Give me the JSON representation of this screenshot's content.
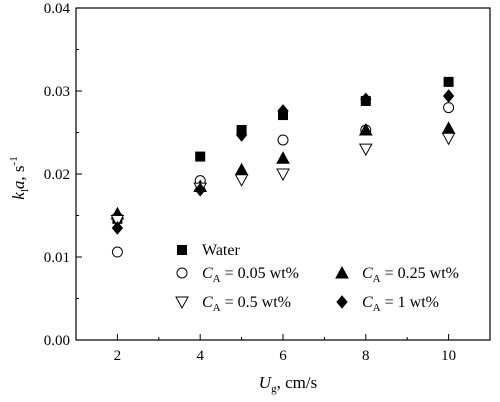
{
  "chart_data": {
    "type": "scatter",
    "x_axis": {
      "title_var": "U",
      "title_sub": "g",
      "title_rest": ", cm/s",
      "range": [
        1,
        11
      ],
      "ticks": [
        2,
        4,
        6,
        8,
        10
      ],
      "tick_labels": [
        "2",
        "4",
        "6",
        "8",
        "10"
      ]
    },
    "y_axis": {
      "title_var1": "k",
      "title_sub": "l",
      "title_var2": "a",
      "title_rest": ",  s",
      "title_sup": "-1",
      "range": [
        0,
        0.04
      ],
      "ticks": [
        0.0,
        0.01,
        0.02,
        0.03,
        0.04
      ],
      "tick_labels": [
        "0.00",
        "0.01",
        "0.02",
        "0.03",
        "0.04"
      ]
    },
    "grid": false,
    "legend_position": "bottom-right",
    "series": [
      {
        "label_plain": "Water",
        "marker": "square-filled",
        "x": [
          2,
          4,
          5,
          6,
          8,
          10
        ],
        "y": [
          0.0146,
          0.0221,
          0.0253,
          0.0271,
          0.0288,
          0.0311
        ]
      },
      {
        "label_var": "C",
        "label_sub": "A",
        "label_rest": " = 0.05 wt%",
        "marker": "circle-open",
        "x": [
          2,
          4,
          5,
          6,
          8,
          10
        ],
        "y": [
          0.0106,
          0.0192,
          0.0198,
          0.0241,
          0.0253,
          0.028
        ]
      },
      {
        "label_var": "C",
        "label_sub": "A",
        "label_rest": " = 0.25 wt%",
        "marker": "triangle-up-filled",
        "x": [
          2,
          4,
          5,
          6,
          8,
          10
        ],
        "y": [
          0.0152,
          0.0185,
          0.0205,
          0.0219,
          0.0253,
          0.0255
        ]
      },
      {
        "label_var": "C",
        "label_sub": "A",
        "label_rest": " = 0.5 wt%",
        "marker": "triangle-down-open",
        "x": [
          2,
          4,
          5,
          6,
          8,
          10
        ],
        "y": [
          0.0144,
          0.0183,
          0.0193,
          0.02,
          0.023,
          0.0243
        ]
      },
      {
        "label_var": "C",
        "label_sub": "A",
        "label_rest": " = 1 wt%",
        "marker": "diamond-filled",
        "x": [
          2,
          4,
          5,
          6,
          8,
          10
        ],
        "y": [
          0.0135,
          0.0181,
          0.0247,
          0.0276,
          0.029,
          0.0294
        ]
      }
    ]
  }
}
